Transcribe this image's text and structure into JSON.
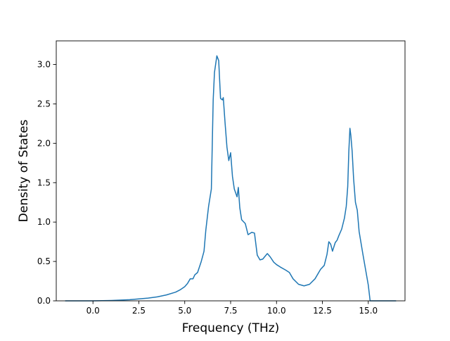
{
  "chart_data": {
    "type": "line",
    "title": "",
    "xlabel": "Frequency (THz)",
    "ylabel": "Density of States",
    "xlim": [
      -2.0,
      17.0
    ],
    "ylim": [
      0.0,
      3.3
    ],
    "xticks": [
      0.0,
      2.5,
      5.0,
      7.5,
      10.0,
      12.5,
      15.0
    ],
    "xtick_labels": [
      "0.0",
      "2.5",
      "5.0",
      "7.5",
      "10.0",
      "12.5",
      "15.0"
    ],
    "yticks": [
      0.0,
      0.5,
      1.0,
      1.5,
      2.0,
      2.5,
      3.0
    ],
    "ytick_labels": [
      "0.0",
      "0.5",
      "1.0",
      "1.5",
      "2.0",
      "2.5",
      "3.0"
    ],
    "grid": false,
    "series": [
      {
        "color": "#1f77b4",
        "x": [
          -1.5,
          0.0,
          1.0,
          2.0,
          3.0,
          3.5,
          4.0,
          4.5,
          4.75,
          5.0,
          5.15,
          5.3,
          5.45,
          5.55,
          5.7,
          5.9,
          6.05,
          6.15,
          6.3,
          6.45,
          6.55,
          6.62,
          6.75,
          6.85,
          6.95,
          7.05,
          7.1,
          7.2,
          7.3,
          7.4,
          7.5,
          7.6,
          7.7,
          7.85,
          7.92,
          8.0,
          8.1,
          8.3,
          8.45,
          8.65,
          8.8,
          8.95,
          9.1,
          9.25,
          9.5,
          9.65,
          9.85,
          10.0,
          10.2,
          10.5,
          10.7,
          10.9,
          11.2,
          11.5,
          11.8,
          12.1,
          12.4,
          12.6,
          12.75,
          12.85,
          12.95,
          13.05,
          13.2,
          13.3,
          13.4,
          13.55,
          13.7,
          13.8,
          13.88,
          13.94,
          14.0,
          14.05,
          14.12,
          14.2,
          14.3,
          14.4,
          14.5,
          14.7,
          14.85,
          15.0,
          15.1,
          15.3,
          16.5
        ],
        "y": [
          0.0,
          0.0,
          0.005,
          0.015,
          0.035,
          0.05,
          0.075,
          0.11,
          0.14,
          0.18,
          0.22,
          0.28,
          0.28,
          0.33,
          0.36,
          0.5,
          0.63,
          0.9,
          1.2,
          1.42,
          2.55,
          2.9,
          3.11,
          3.05,
          2.57,
          2.55,
          2.58,
          2.25,
          1.95,
          1.78,
          1.88,
          1.58,
          1.42,
          1.32,
          1.44,
          1.18,
          1.03,
          0.98,
          0.84,
          0.87,
          0.86,
          0.58,
          0.52,
          0.53,
          0.6,
          0.56,
          0.49,
          0.46,
          0.43,
          0.39,
          0.36,
          0.28,
          0.21,
          0.19,
          0.21,
          0.28,
          0.4,
          0.45,
          0.59,
          0.75,
          0.72,
          0.63,
          0.74,
          0.77,
          0.83,
          0.91,
          1.05,
          1.2,
          1.45,
          1.9,
          2.19,
          2.1,
          1.9,
          1.55,
          1.25,
          1.15,
          0.88,
          0.6,
          0.4,
          0.2,
          0.0,
          0.0,
          0.0
        ]
      }
    ]
  }
}
